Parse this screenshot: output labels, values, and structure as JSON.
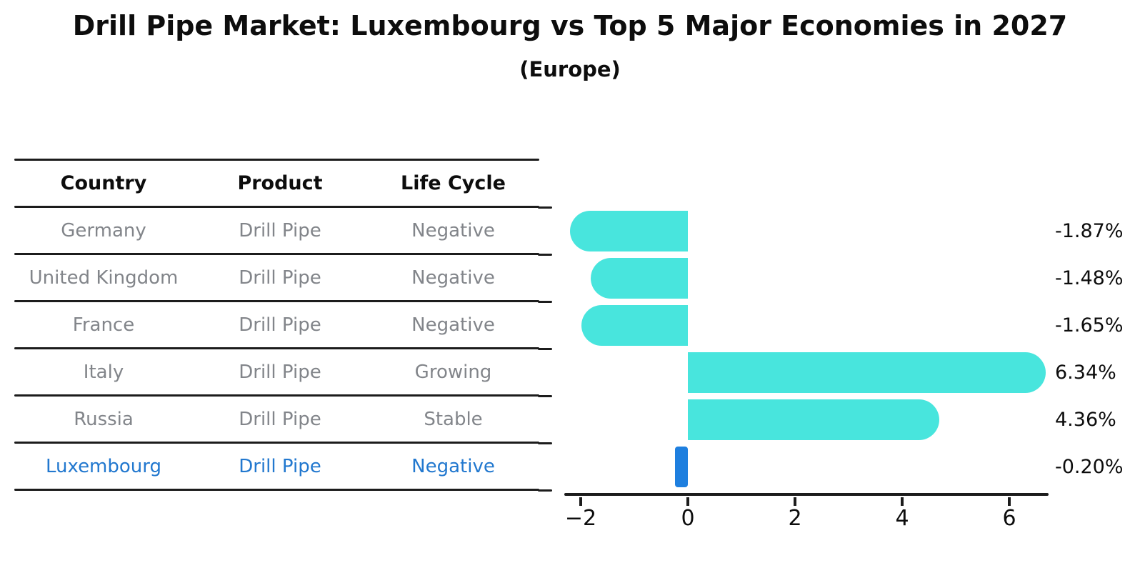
{
  "title": "Drill Pipe Market: Luxembourg vs Top 5 Major Economies in 2027",
  "subtitle": "(Europe)",
  "table": {
    "columns": [
      "Country",
      "Product",
      "Life Cycle"
    ],
    "rows": [
      {
        "country": "Germany",
        "product": "Drill Pipe",
        "life_cycle": "Negative"
      },
      {
        "country": "United Kingdom",
        "product": "Drill Pipe",
        "life_cycle": "Negative"
      },
      {
        "country": "France",
        "product": "Drill Pipe",
        "life_cycle": "Negative"
      },
      {
        "country": "Italy",
        "product": "Drill Pipe",
        "life_cycle": "Growing"
      },
      {
        "country": "Russia",
        "product": "Drill Pipe",
        "life_cycle": "Stable"
      },
      {
        "country": "Luxembourg",
        "product": "Drill Pipe",
        "life_cycle": "Negative"
      }
    ]
  },
  "chart_data": {
    "type": "bar",
    "orientation": "horizontal",
    "title": "Drill Pipe Market: Luxembourg vs Top 5 Major Economies in 2027",
    "subtitle": "(Europe)",
    "categories": [
      "Germany",
      "United Kingdom",
      "France",
      "Italy",
      "Russia",
      "Luxembourg"
    ],
    "values": [
      -1.87,
      -1.48,
      -1.65,
      6.34,
      4.36,
      -0.2
    ],
    "value_labels": [
      "-1.87%",
      "-1.48%",
      "-1.65%",
      "6.34%",
      "4.36%",
      "-0.20%"
    ],
    "unit": "%",
    "xticks": [
      -2,
      0,
      2,
      4,
      6
    ],
    "xtick_labels": [
      "−2",
      "0",
      "2",
      "4",
      "6"
    ],
    "xlim": [
      -2.3,
      6.75
    ],
    "grid": false,
    "legend": "none",
    "bar_color": "#48e5dd",
    "highlight_bar_color": "#1e7fdf",
    "highlight_index": 5
  },
  "colors": {
    "text_primary": "#0d0d0d",
    "text_muted": "#82858a",
    "highlight_text": "#2278cf",
    "axis": "#1c1c1c"
  }
}
